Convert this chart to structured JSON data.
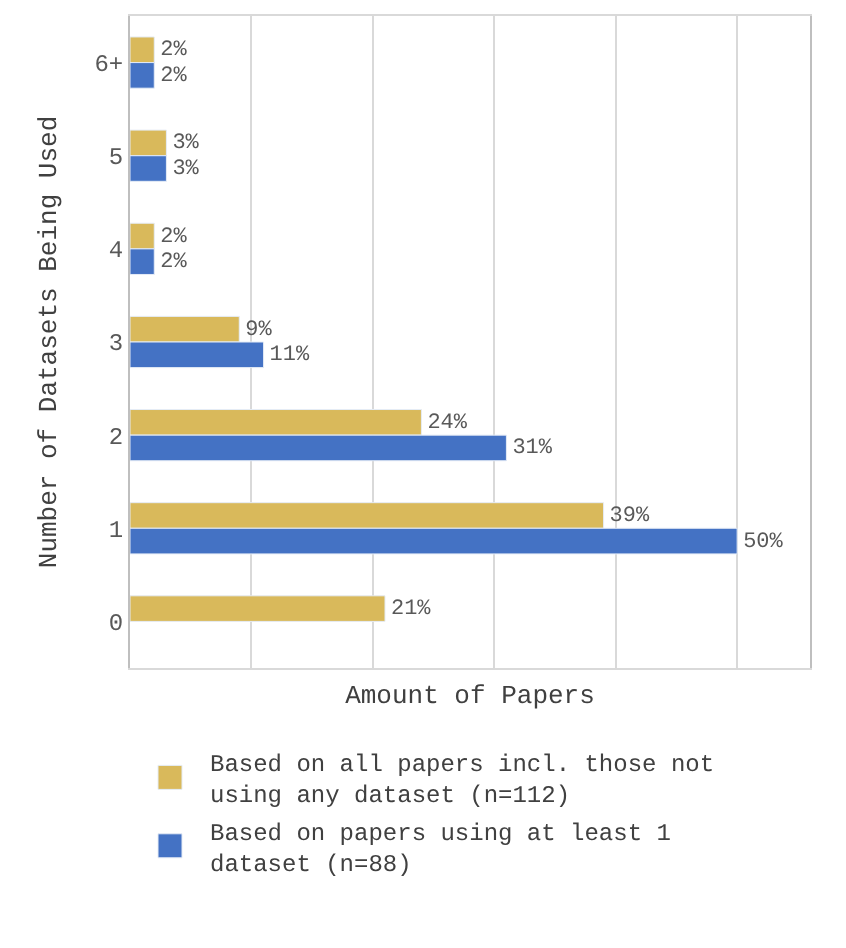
{
  "chart_data": {
    "type": "bar",
    "orientation": "horizontal",
    "xlabel": "Amount of Papers",
    "ylabel": "Number of Datasets Being Used",
    "categories": [
      "6+",
      "5",
      "4",
      "3",
      "2",
      "1",
      "0"
    ],
    "xlim": [
      0,
      56
    ],
    "xticks": [
      {
        "value": 0,
        "label": null
      },
      {
        "value": 10,
        "label": null
      },
      {
        "value": 20,
        "label": null
      },
      {
        "value": 30,
        "label": null
      },
      {
        "value": 40,
        "label": null
      },
      {
        "value": 50,
        "label": null
      }
    ],
    "tick_labels": "y",
    "grid": "x",
    "legend": "bottom",
    "series": [
      {
        "name": "Based on all papers incl. those not using any dataset (n=112)",
        "color": "#d9b95b",
        "values": [
          2,
          3,
          2,
          9,
          24,
          39,
          21
        ],
        "value_labels": [
          "2%",
          "3%",
          "2%",
          "9%",
          "24%",
          "39%",
          "21%"
        ]
      },
      {
        "name": "Based on papers using at least 1 dataset (n=88)",
        "color": "#4472c4",
        "values": [
          2,
          3,
          2,
          11,
          31,
          50,
          null
        ],
        "value_labels": [
          "2%",
          "3%",
          "2%",
          "11%",
          "31%",
          "50%",
          null
        ]
      }
    ]
  }
}
